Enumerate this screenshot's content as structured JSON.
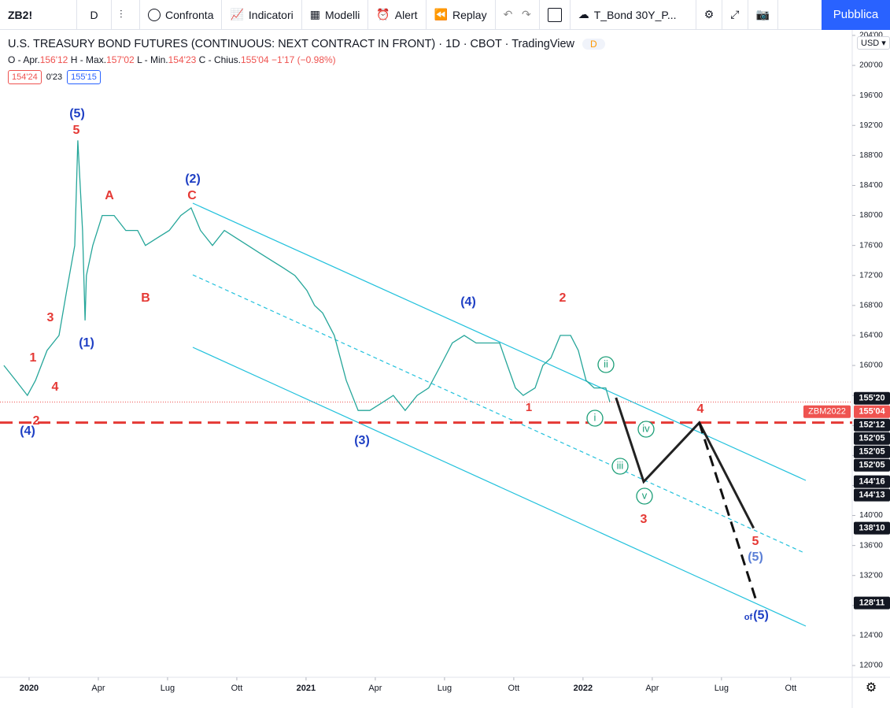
{
  "toolbar": {
    "symbol": "ZB2!",
    "interval": "D",
    "compare": "Confronta",
    "indicators": "Indicatori",
    "templates": "Modelli",
    "alert": "Alert",
    "replay": "Replay",
    "layout": "T_Bond 30Y_P...",
    "publish": "Pubblica"
  },
  "header": {
    "title": "U.S. TREASURY BOND FUTURES (CONTINUOUS: NEXT CONTRACT IN FRONT) · 1D · CBOT · TradingView",
    "badge": "D",
    "ohlc": {
      "open_label": "O - Apr.",
      "open": "156'12",
      "high_label": "H - Max.",
      "high": "157'02",
      "low_label": "L - Min.",
      "low": "154'23",
      "close_label": "C - Chius.",
      "close": "155'04",
      "change": "−1'17 (−0.98%)"
    },
    "bid": "154'24",
    "spread": "0'23",
    "ask": "155'15",
    "currency": "USD"
  },
  "chart_data": {
    "type": "line",
    "xlim": [
      2019.895,
      2022.972
    ],
    "ylim": [
      118.43,
      204.73
    ],
    "grid": false,
    "xticks": [
      2020,
      {
        "value": 2020.25,
        "label": "Apr"
      },
      {
        "value": 2020.5,
        "label": "Lug"
      },
      {
        "value": 2020.75,
        "label": "Ott"
      },
      2021,
      {
        "value": 2021.25,
        "label": "Apr"
      },
      {
        "value": 2021.5,
        "label": "Lug"
      },
      {
        "value": 2021.75,
        "label": "Ott"
      },
      2022,
      {
        "value": 2022.25,
        "label": "Apr"
      },
      {
        "value": 2022.5,
        "label": "Lug"
      },
      {
        "value": 2022.75,
        "label": "Ott"
      }
    ],
    "yticks": [
      {
        "value": 204,
        "label": "204'00"
      },
      {
        "value": 200,
        "label": "200'00"
      },
      {
        "value": 196,
        "label": "196'00"
      },
      {
        "value": 192,
        "label": "192'00"
      },
      {
        "value": 188,
        "label": "188'00"
      },
      {
        "value": 184,
        "label": "184'00"
      },
      {
        "value": 180,
        "label": "180'00"
      },
      {
        "value": 176,
        "label": "176'00"
      },
      {
        "value": 172,
        "label": "172'00"
      },
      {
        "value": 168,
        "label": "168'00"
      },
      {
        "value": 164,
        "label": "164'00"
      },
      {
        "value": 160,
        "label": "160'00"
      },
      {
        "value": 156,
        "label": "156'00"
      },
      {
        "value": 152,
        "label": "152'00"
      },
      {
        "value": 148,
        "label": "148'00"
      },
      {
        "value": 144,
        "label": "144'00"
      },
      {
        "value": 140,
        "label": "140'00"
      },
      {
        "value": 136,
        "label": "136'00"
      },
      {
        "value": 132,
        "label": "132'00"
      },
      {
        "value": 128,
        "label": "128'00"
      },
      {
        "value": 124,
        "label": "124'00"
      },
      {
        "value": 120,
        "label": "120'00"
      }
    ],
    "series": [
      {
        "color": "#26a69a",
        "dashed": false,
        "x": [
          2019.909,
          2019.952,
          2019.994,
          2020.023,
          2020.065,
          2020.108,
          2020.136,
          2020.165,
          2020.176,
          2020.193,
          2020.202,
          2020.207,
          2020.23,
          2020.264,
          2020.307,
          2020.349,
          2020.392,
          2020.42,
          2020.463,
          2020.506,
          2020.548,
          2020.585,
          2020.619,
          2020.662,
          2020.705,
          2020.747,
          2020.79,
          2020.832,
          2020.875,
          2020.918,
          2020.96,
          2021.003,
          2021.031,
          2021.06,
          2021.102,
          2021.145,
          2021.188,
          2021.23,
          2021.273,
          2021.315,
          2021.358,
          2021.401,
          2021.443,
          2021.486,
          2021.528,
          2021.571,
          2021.614,
          2021.656,
          2021.699,
          2021.727,
          2021.756,
          2021.784,
          2021.827,
          2021.855,
          2021.884,
          2021.918,
          2021.955,
          2021.983,
          2022.011,
          2022.04,
          2022.082,
          2022.097
        ],
        "values": [
          160,
          158,
          156,
          158,
          162,
          164,
          170,
          176,
          190,
          178,
          166,
          172,
          176,
          180,
          180,
          178,
          178,
          176,
          177,
          178,
          180,
          181,
          178,
          176,
          178,
          177,
          176,
          175,
          174,
          173,
          172,
          170,
          168,
          167,
          164,
          158,
          154,
          154,
          155,
          156,
          154,
          156,
          157,
          160,
          163,
          164,
          163,
          163,
          163,
          160,
          157,
          156,
          157,
          160,
          161,
          164,
          164,
          162,
          158,
          157,
          157,
          155.125
        ]
      },
      {
        "color": "#222222",
        "dashed": false,
        "x": [
          2022.119,
          2022.219,
          2022.42,
          2022.616
        ],
        "values": [
          155.7,
          144.5,
          152.375,
          138.3125
        ]
      },
      {
        "color": "#111111",
        "dashed": true,
        "x": [
          2022.42,
          2022.628
        ],
        "values": [
          152.375,
          128.34375
        ]
      }
    ],
    "hlines": [
      {
        "value": 155.125,
        "color": "#ef5350",
        "style": "dotted"
      },
      {
        "value": 152.375,
        "color": "#e53935",
        "style": "dashed"
      }
    ],
    "price_tags": [
      {
        "value": 155.625,
        "label": "155'20",
        "color": "#131722"
      },
      {
        "value": 155.125,
        "label": "155'04",
        "color": "#ef5350"
      },
      {
        "value": 152.375,
        "label": "152'12",
        "color": "#131722"
      },
      {
        "value": 152.15625,
        "label": "152'05",
        "color": "#131722"
      },
      {
        "value": 152.15625,
        "label": "152'05",
        "color": "#131722"
      },
      {
        "value": 152.15625,
        "label": "152'05",
        "color": "#131722"
      },
      {
        "value": 144.5,
        "label": "144'16",
        "color": "#131722"
      },
      {
        "value": 144.40625,
        "label": "144'13",
        "color": "#131722"
      },
      {
        "value": 138.3125,
        "label": "138'10",
        "color": "#131722"
      },
      {
        "value": 128.34375,
        "label": "128'11",
        "color": "#131722"
      }
    ],
    "symbol_tag": "ZBM2022",
    "annotations": [
      {
        "text": "(5)",
        "color": "#1e3fc4"
      },
      {
        "text": "5",
        "color": "#e53935"
      },
      {
        "text": "A",
        "color": "#e53935"
      },
      {
        "text": "(2)",
        "color": "#1e3fc4"
      },
      {
        "text": "C",
        "color": "#e53935"
      },
      {
        "text": "B",
        "color": "#e53935"
      },
      {
        "text": "3",
        "color": "#e53935"
      },
      {
        "text": "(1)",
        "color": "#1e3fc4"
      },
      {
        "text": "1",
        "color": "#e53935"
      },
      {
        "text": "4",
        "color": "#e53935"
      },
      {
        "text": "2",
        "color": "#e53935"
      },
      {
        "text": "(4)",
        "color": "#1e3fc4"
      },
      {
        "text": "(3)",
        "color": "#1e3fc4"
      },
      {
        "text": "(4)",
        "color": "#1e3fc4"
      },
      {
        "text": "2",
        "color": "#e53935"
      },
      {
        "text": "1",
        "color": "#e53935"
      },
      {
        "text": "ii",
        "color": "#1b9e77",
        "circled": true
      },
      {
        "text": "i",
        "color": "#1b9e77",
        "circled": true
      },
      {
        "text": "iv",
        "color": "#1b9e77",
        "circled": true
      },
      {
        "text": "iii",
        "color": "#1b9e77",
        "circled": true
      },
      {
        "text": "v",
        "color": "#1b9e77",
        "circled": true
      },
      {
        "text": "4",
        "color": "#e53935"
      },
      {
        "text": "3",
        "color": "#e53935"
      },
      {
        "text": "5",
        "color": "#e53935"
      },
      {
        "text": "(5)",
        "color": "#5b7fd6"
      },
      {
        "text": "of",
        "color": "#1e3fc4"
      },
      {
        "text": "(5)",
        "color": "#1e3fc4"
      }
    ]
  }
}
